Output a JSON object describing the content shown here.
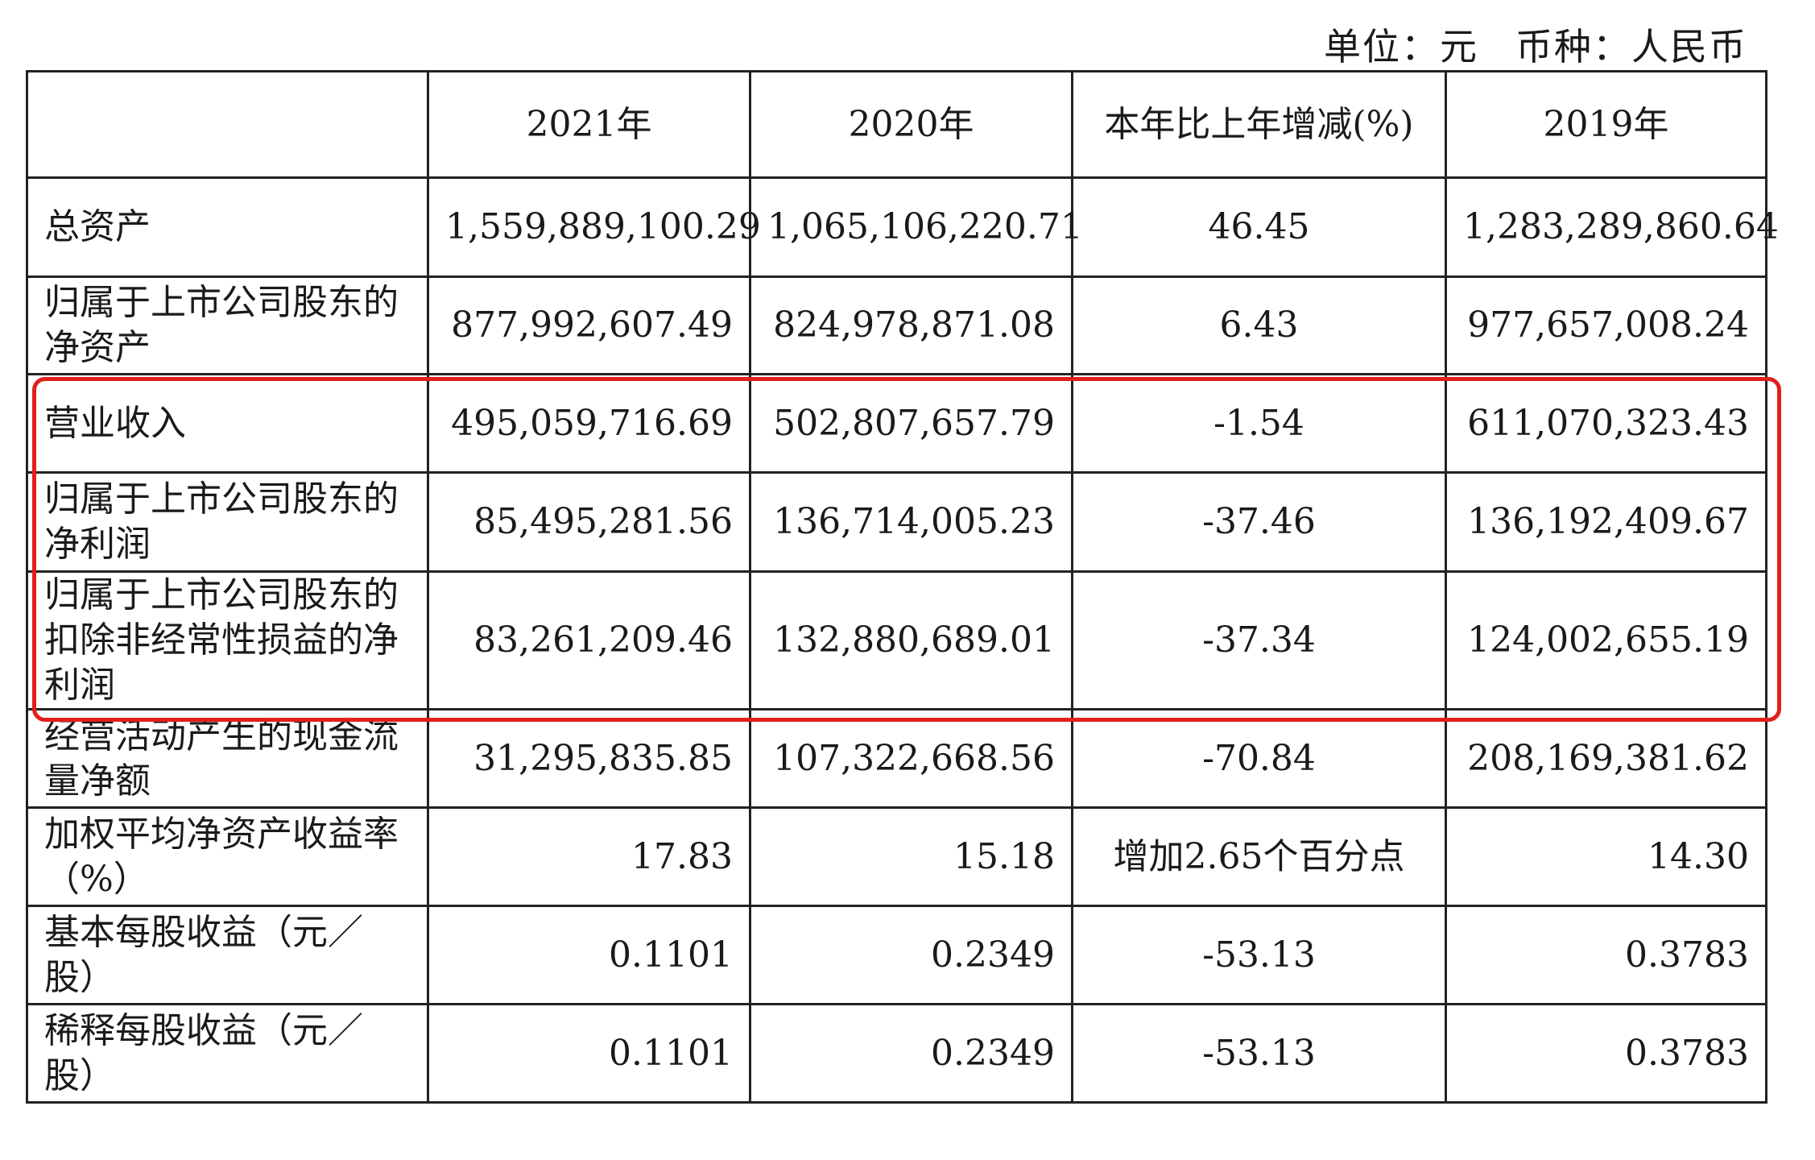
{
  "unit": {
    "unit_text": "单位：元",
    "currency_text": "币种：人民币"
  },
  "headers": [
    "",
    "2021年",
    "2020年",
    "本年比上年增减(%)",
    "2019年"
  ],
  "rows": [
    {
      "label": "总资产",
      "y2021": "1,559,889,100.29",
      "y2020": "1,065,106,220.71",
      "change": "46.45",
      "y2019": "1,283,289,860.64"
    },
    {
      "label": "归属于上市公司股东的净资产",
      "y2021": "877,992,607.49",
      "y2020": "824,978,871.08",
      "change": "6.43",
      "y2019": "977,657,008.24"
    },
    {
      "label": "营业收入",
      "y2021": "495,059,716.69",
      "y2020": "502,807,657.79",
      "change": "-1.54",
      "y2019": "611,070,323.43"
    },
    {
      "label": "归属于上市公司股东的净利润",
      "y2021": "85,495,281.56",
      "y2020": "136,714,005.23",
      "change": "-37.46",
      "y2019": "136,192,409.67"
    },
    {
      "label": "归属于上市公司股东的扣除非经常性损益的净利润",
      "y2021": "83,261,209.46",
      "y2020": "132,880,689.01",
      "change": "-37.34",
      "y2019": "124,002,655.19"
    },
    {
      "label": "经营活动产生的现金流量净额",
      "y2021": "31,295,835.85",
      "y2020": "107,322,668.56",
      "change": "-70.84",
      "y2019": "208,169,381.62"
    },
    {
      "label": "加权平均净资产收益率（%）",
      "y2021": "17.83",
      "y2020": "15.18",
      "change": "增加2.65个百分点",
      "y2019": "14.30"
    },
    {
      "label": "基本每股收益（元／股）",
      "y2021": "0.1101",
      "y2020": "0.2349",
      "change": "-53.13",
      "y2019": "0.3783"
    },
    {
      "label": "稀释每股收益（元／股）",
      "y2021": "0.1101",
      "y2020": "0.2349",
      "change": "-53.13",
      "y2019": "0.3783"
    }
  ],
  "highlight_color": "#e0201b"
}
